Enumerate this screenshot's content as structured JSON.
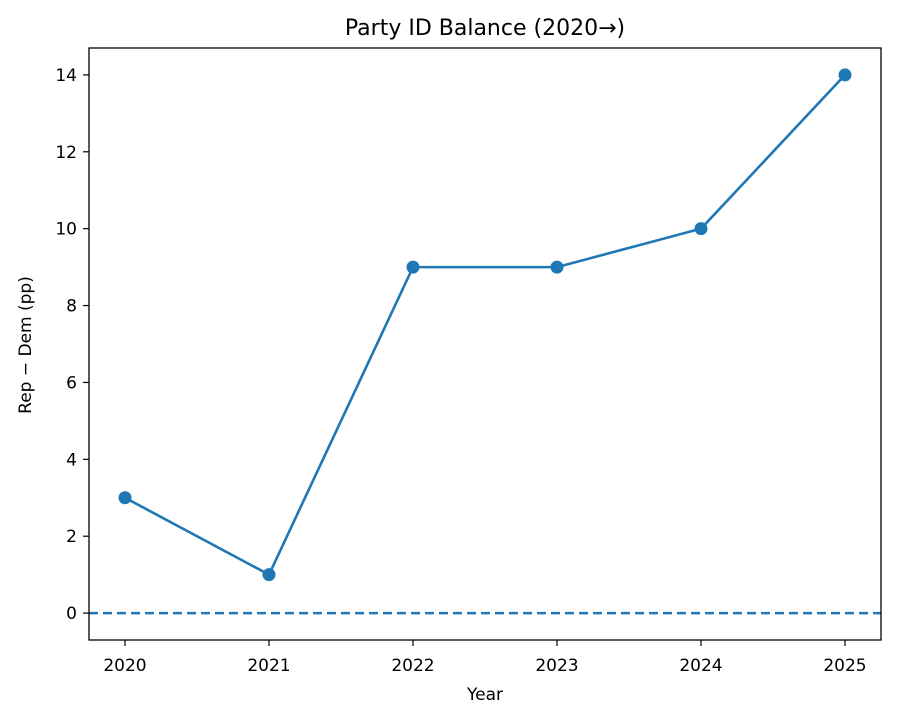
{
  "chart_data": {
    "type": "line",
    "title": "Party ID Balance (2020→)",
    "xlabel": "Year",
    "ylabel": "Rep − Dem (pp)",
    "x": [
      2020,
      2021,
      2022,
      2023,
      2024,
      2025
    ],
    "series": [
      {
        "values": [
          3,
          1,
          9,
          9,
          10,
          14
        ]
      }
    ],
    "xticks": [
      "2020",
      "2021",
      "2022",
      "2023",
      "2024",
      "2025"
    ],
    "yticks": [
      "0",
      "2",
      "4",
      "6",
      "8",
      "10",
      "12",
      "14"
    ],
    "ylim": [
      -0.7,
      14.7
    ],
    "xlim": [
      2019.75,
      2025.25
    ],
    "reference_line": {
      "y": 0,
      "style": "dashed"
    },
    "grid": false,
    "markers": true,
    "colors": {
      "series": "#1f77b4",
      "reference": "#1f77b4",
      "axes": "#000000"
    }
  }
}
